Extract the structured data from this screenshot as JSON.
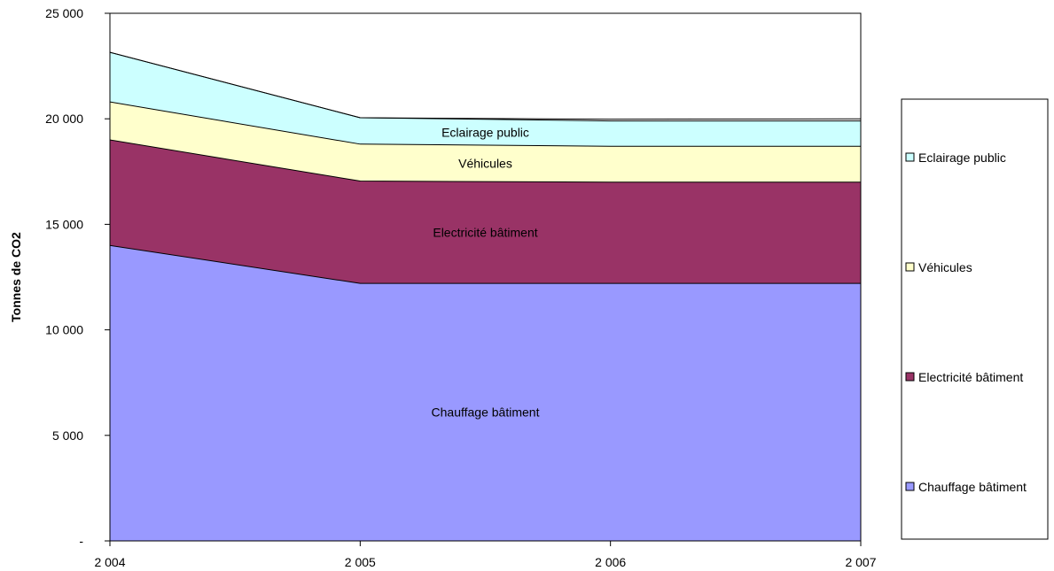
{
  "chart_data": {
    "type": "area",
    "stacked": true,
    "title": "",
    "xlabel": "",
    "ylabel": "Tonnes de CO2",
    "x": [
      "2 004",
      "2 005",
      "2 006",
      "2 007"
    ],
    "ylim": [
      0,
      25000
    ],
    "y_ticks": [
      {
        "value": 0,
        "label": "-"
      },
      {
        "value": 5000,
        "label": "5 000"
      },
      {
        "value": 10000,
        "label": "10 000"
      },
      {
        "value": 15000,
        "label": "15 000"
      },
      {
        "value": 20000,
        "label": "20 000"
      },
      {
        "value": 25000,
        "label": "25 000"
      }
    ],
    "series": [
      {
        "name": "Chauffage bâtiment",
        "values": [
          14000,
          12200,
          12200,
          12200
        ],
        "color": "#9999ff"
      },
      {
        "name": "Electricité bâtiment",
        "values": [
          5000,
          4850,
          4800,
          4800
        ],
        "color": "#993366"
      },
      {
        "name": "Véhicules",
        "values": [
          1800,
          1750,
          1700,
          1700
        ],
        "color": "#ffffcc"
      },
      {
        "name": "Eclairage public",
        "values": [
          2350,
          1250,
          1200,
          1200
        ],
        "color": "#ccffff"
      },
      {
        "name": "",
        "values": [
          0,
          0,
          80,
          100
        ],
        "color": "#ffffff"
      }
    ],
    "area_labels": [
      {
        "text": "Chauffage bâtiment",
        "series_index": 0
      },
      {
        "text": "Electricité bâtiment",
        "series_index": 1
      },
      {
        "text": "Véhicules",
        "series_index": 2
      },
      {
        "text": "Eclairage public",
        "series_index": 3
      }
    ],
    "legend": {
      "position": "right",
      "entries": [
        {
          "label": "Eclairage public",
          "color": "#ccffff"
        },
        {
          "label": "Véhicules",
          "color": "#ffffcc"
        },
        {
          "label": "Electricité bâtiment",
          "color": "#993366"
        },
        {
          "label": "Chauffage bâtiment",
          "color": "#9999ff"
        }
      ]
    },
    "grid": false
  }
}
